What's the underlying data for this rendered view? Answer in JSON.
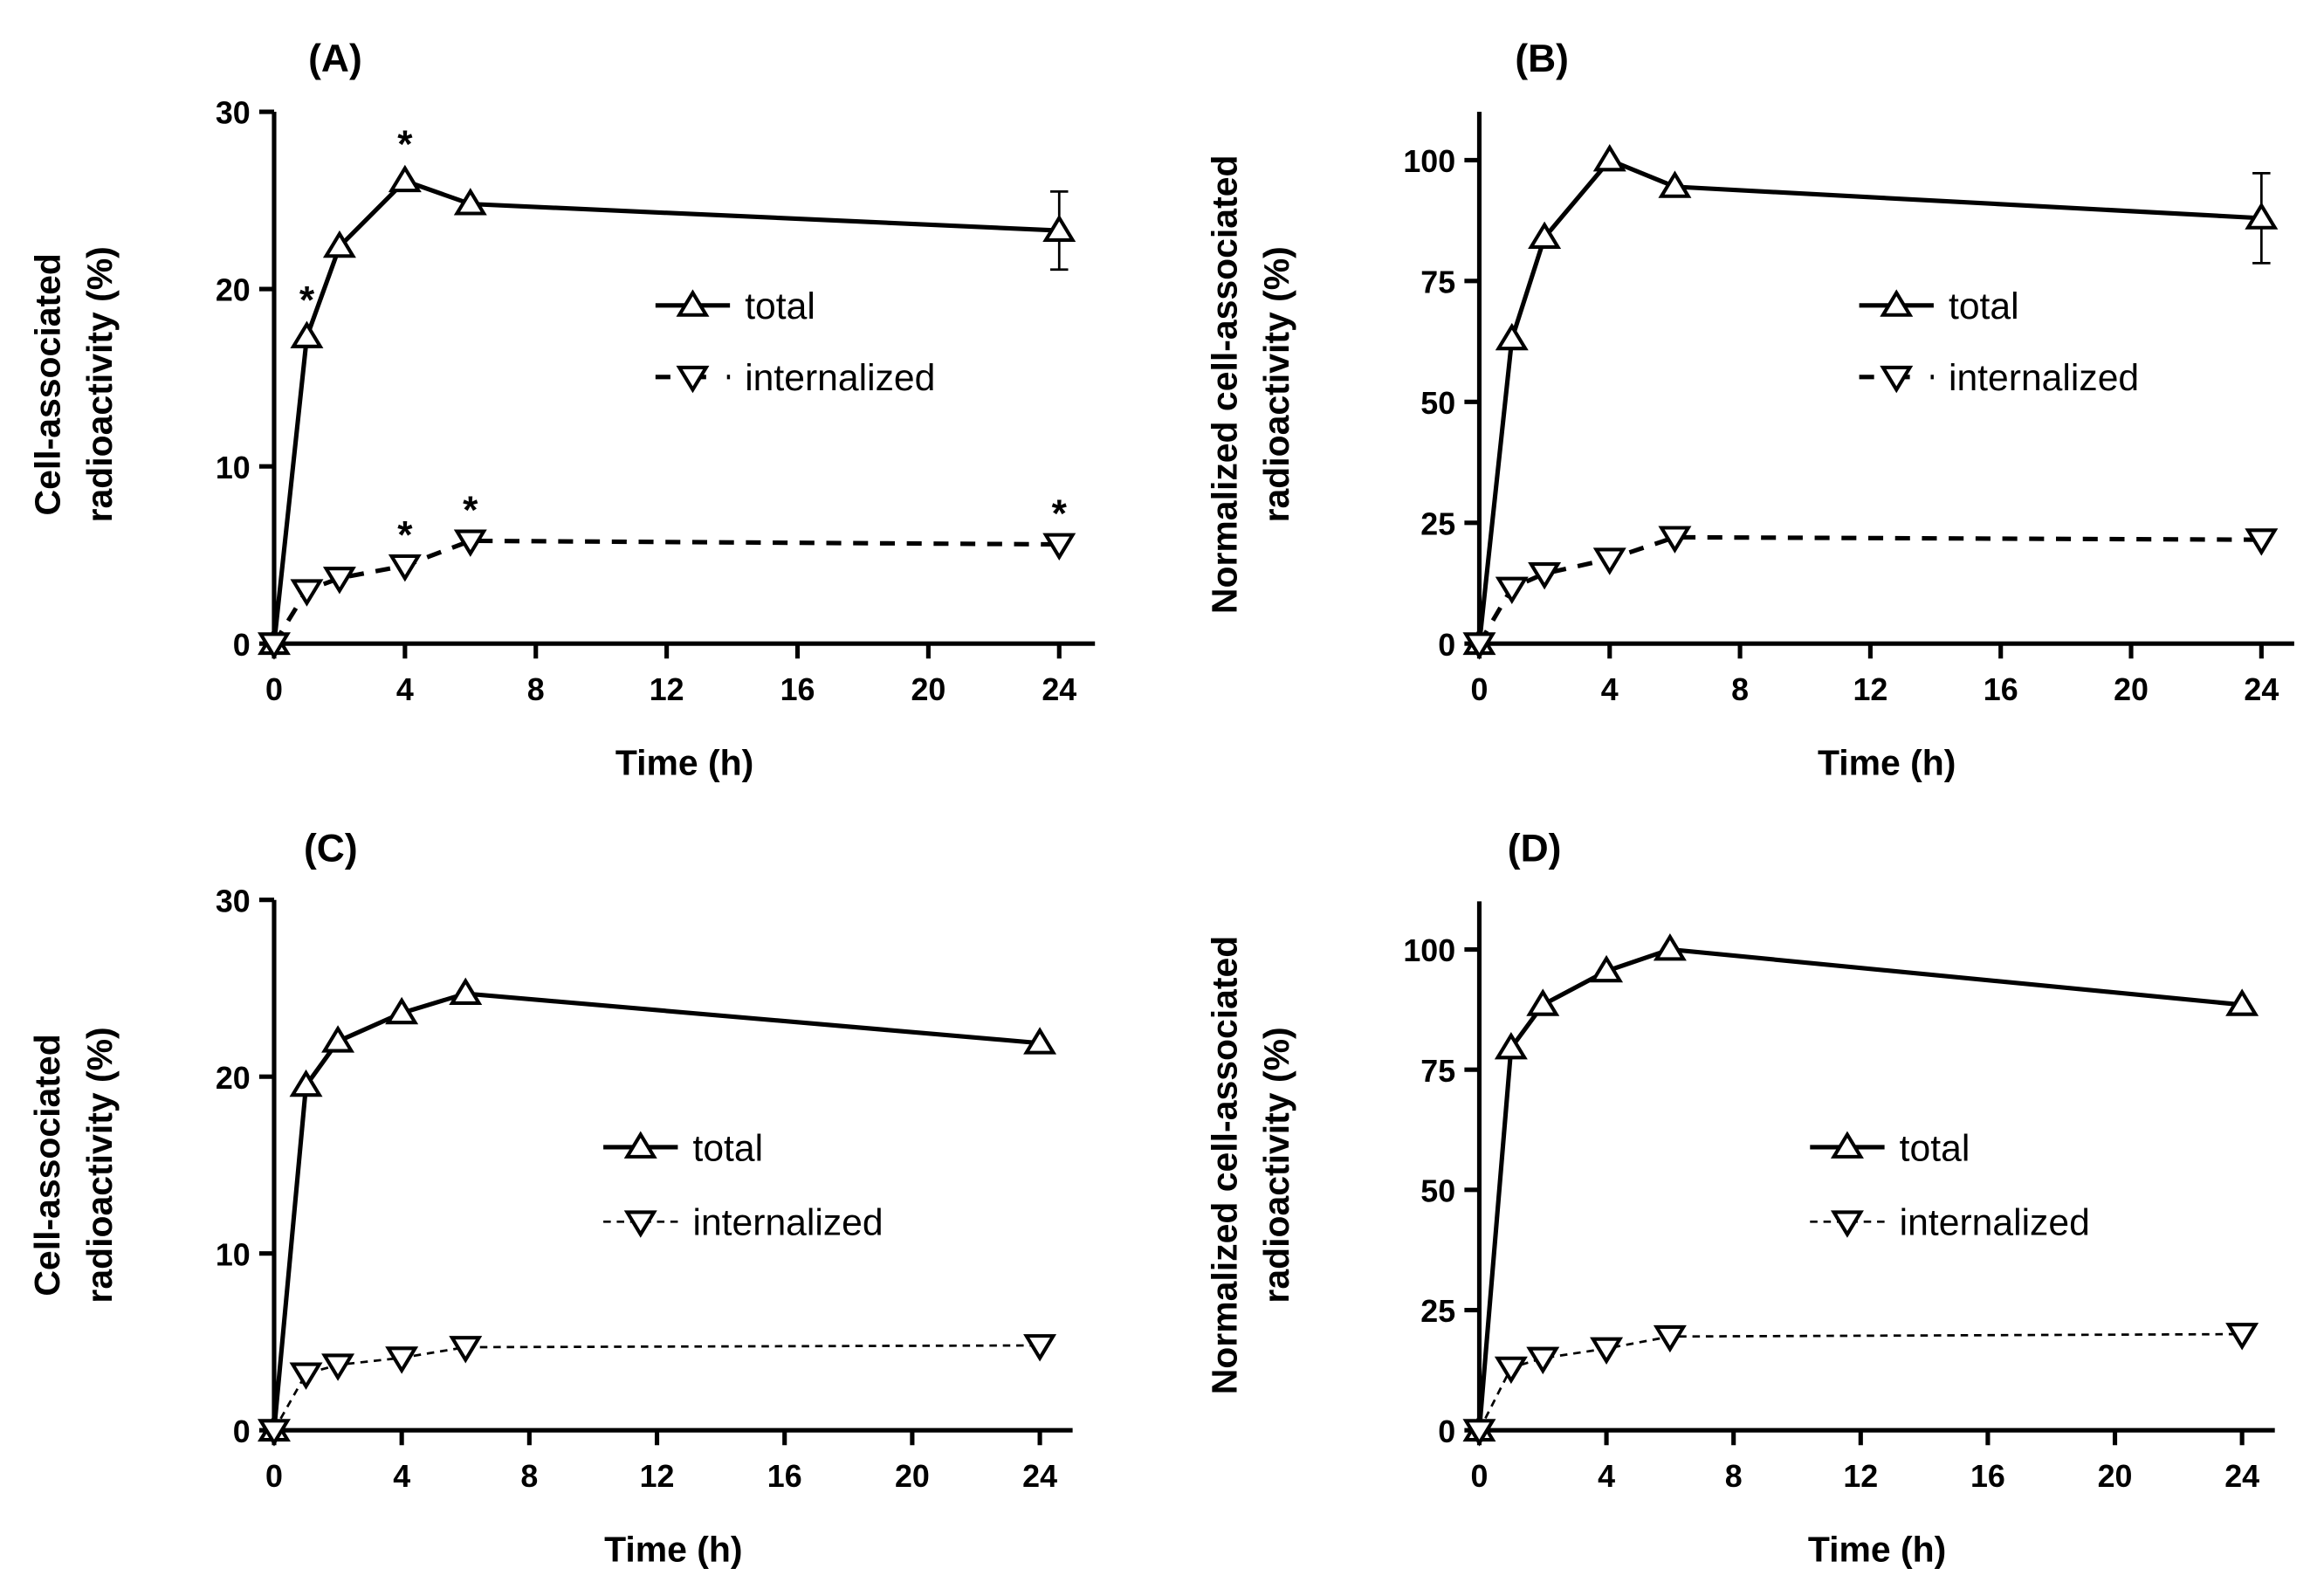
{
  "chart_data": [
    {
      "type": "line",
      "title": "(A)",
      "xlabel": "Time (h)",
      "ylabel": [
        "Cell-associated",
        "radioactivity (%)"
      ],
      "xlim": [
        0,
        24
      ],
      "ylim": [
        0,
        30
      ],
      "xticks": [
        0,
        4,
        8,
        12,
        16,
        20,
        24
      ],
      "yticks": [
        0,
        10,
        20,
        30
      ],
      "legend": [
        "total",
        "internalized"
      ],
      "legend_position": "center-right",
      "x": [
        0,
        1,
        2,
        4,
        6,
        24
      ],
      "series": [
        {
          "name": "total",
          "marker": "triangle-up",
          "line": "solid",
          "values": [
            0,
            17.3,
            22.4,
            26.1,
            24.8,
            23.3
          ],
          "error": [
            0,
            0,
            0,
            0,
            0,
            2.2
          ],
          "asterisks": [
            1,
            4
          ]
        },
        {
          "name": "internalized",
          "marker": "triangle-down",
          "line": "dashed-thick",
          "values": [
            0,
            3.0,
            3.7,
            4.4,
            5.8,
            5.6
          ],
          "error": [
            0,
            0,
            0,
            0,
            0,
            0
          ],
          "asterisks": [
            4,
            6,
            24
          ]
        }
      ],
      "annotation": "*"
    },
    {
      "type": "line",
      "title": "(B)",
      "xlabel": "Time (h)",
      "ylabel": [
        "Normalized cell-associated",
        "radioactivity (%)"
      ],
      "xlim": [
        0,
        24
      ],
      "ylim": [
        0,
        110
      ],
      "xticks": [
        0,
        4,
        8,
        12,
        16,
        20,
        24
      ],
      "yticks": [
        0,
        25,
        50,
        75,
        100
      ],
      "legend": [
        "total",
        "internalized"
      ],
      "legend_position": "center-right",
      "x": [
        0,
        1,
        2,
        4,
        6,
        24
      ],
      "series": [
        {
          "name": "total",
          "marker": "triangle-up",
          "line": "solid",
          "values": [
            0,
            63,
            84,
            100,
            94.5,
            88
          ],
          "error": [
            0,
            0,
            0,
            0,
            0,
            9.3
          ],
          "asterisks": []
        },
        {
          "name": "internalized",
          "marker": "triangle-down",
          "line": "dashed-thick",
          "values": [
            0,
            11.5,
            14.5,
            17.5,
            22,
            21.5
          ],
          "error": [
            0,
            0,
            0,
            0,
            0,
            0
          ],
          "asterisks": []
        }
      ]
    },
    {
      "type": "line",
      "title": "(C)",
      "xlabel": "Time (h)",
      "ylabel": [
        "Cell-associated",
        "radioactivity (%)"
      ],
      "xlim": [
        0,
        24
      ],
      "ylim": [
        0,
        30
      ],
      "xticks": [
        0,
        4,
        8,
        12,
        16,
        20,
        24
      ],
      "yticks": [
        0,
        10,
        20,
        30
      ],
      "legend": [
        "total",
        "internalized"
      ],
      "legend_position": "center",
      "x": [
        0,
        1,
        2,
        4,
        6,
        24
      ],
      "series": [
        {
          "name": "total",
          "marker": "triangle-up",
          "line": "solid",
          "values": [
            0,
            19.5,
            22.0,
            23.6,
            24.7,
            21.9
          ],
          "error": [
            0,
            0,
            0,
            0,
            0,
            0
          ],
          "asterisks": []
        },
        {
          "name": "internalized",
          "marker": "triangle-down",
          "line": "dashed-thin",
          "values": [
            0,
            3.2,
            3.7,
            4.1,
            4.7,
            4.8
          ],
          "error": [
            0,
            0,
            0,
            0,
            0,
            0
          ],
          "asterisks": []
        }
      ]
    },
    {
      "type": "line",
      "title": "(D)",
      "xlabel": "Time (h)",
      "ylabel": [
        "Normalized cell-associated",
        "radioactivity (%)"
      ],
      "xlim": [
        0,
        24
      ],
      "ylim": [
        0,
        110
      ],
      "xticks": [
        0,
        4,
        8,
        12,
        16,
        20,
        24
      ],
      "yticks": [
        0,
        25,
        50,
        75,
        100
      ],
      "legend": [
        "total",
        "internalized"
      ],
      "legend_position": "center-right",
      "x": [
        0,
        1,
        2,
        4,
        6,
        24
      ],
      "series": [
        {
          "name": "total",
          "marker": "triangle-up",
          "line": "solid",
          "values": [
            0,
            79.5,
            88.5,
            95.5,
            100,
            88.5
          ],
          "error": [
            0,
            0,
            0,
            0,
            0,
            0
          ],
          "asterisks": []
        },
        {
          "name": "internalized",
          "marker": "triangle-down",
          "line": "dashed-thin",
          "values": [
            0,
            13,
            15,
            17,
            19.5,
            20
          ],
          "error": [
            0,
            0,
            0,
            0,
            0,
            0
          ],
          "asterisks": []
        }
      ]
    }
  ],
  "colors": {
    "ink": "#000000",
    "background": "#ffffff"
  }
}
